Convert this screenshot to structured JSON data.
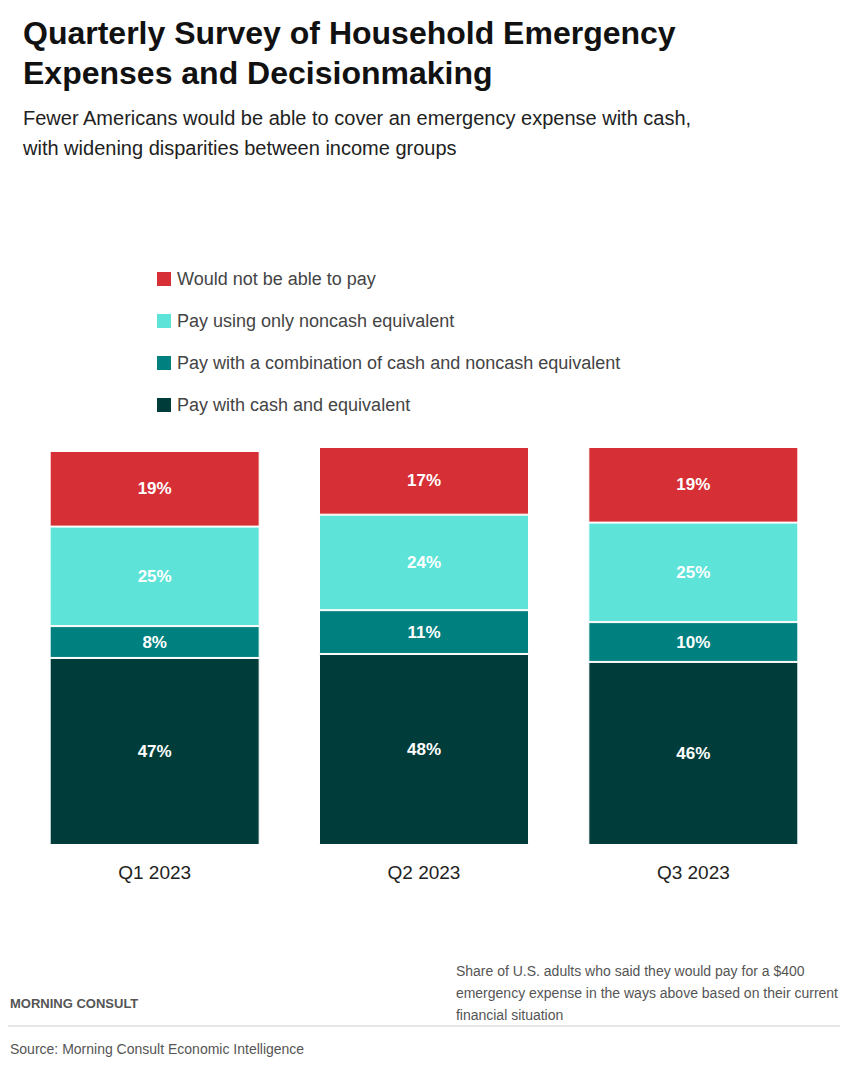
{
  "chart_data": {
    "type": "bar",
    "title": "Quarterly Survey of Household Emergency Expenses and Decisionmaking",
    "subtitle": "Fewer Americans would be able to cover an emergency expense with cash, with widening disparities between income groups",
    "categories": [
      "Q1 2023",
      "Q2 2023",
      "Q3 2023"
    ],
    "series": [
      {
        "name": "Pay with cash and equivalent",
        "color": "#003d3a",
        "values": [
          47,
          48,
          46
        ],
        "value_labels": [
          "47%",
          "48%",
          "46%"
        ]
      },
      {
        "name": "Pay with a combination of cash and noncash equivalent",
        "color": "#00807f",
        "values": [
          8,
          11,
          10
        ],
        "value_labels": [
          "8%",
          "11%",
          "10%"
        ]
      },
      {
        "name": "Pay using only noncash equivalent",
        "color": "#5ee3d8",
        "values": [
          25,
          24,
          25
        ],
        "value_labels": [
          "25%",
          "24%",
          "25%"
        ]
      },
      {
        "name": "Would not be able to pay",
        "color": "#d62f35",
        "values": [
          19,
          17,
          19
        ],
        "value_labels": [
          "19%",
          "17%",
          "19%"
        ]
      }
    ],
    "ylim": [
      0,
      100
    ],
    "stacked": true,
    "data_labels": true,
    "tick_labels": "x",
    "grid": false,
    "legend": "top-left",
    "note": [
      "Share of U.S. adults who said they would pay for a $400",
      "emergency expense in the ways above based on their current",
      "financial situation"
    ],
    "brand": "MORNING CONSULT",
    "source": "Source: Morning Consult Economic Intelligence"
  }
}
